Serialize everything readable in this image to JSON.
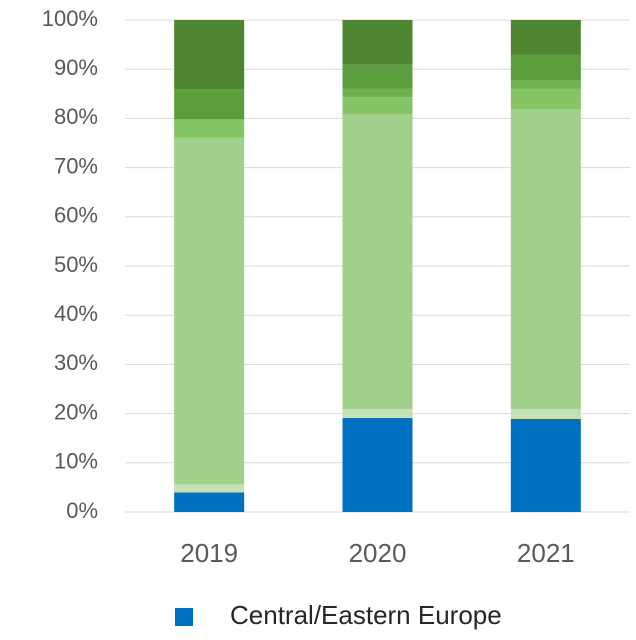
{
  "chart_data": {
    "type": "stacked_bar",
    "categories": [
      "2019",
      "2020",
      "2021"
    ],
    "series": [
      {
        "name": "Central/Eastern Europe",
        "color": "#0070c0",
        "values": [
          4,
          19.1,
          18.9
        ]
      },
      {
        "color": "#c5e0b4",
        "values": [
          1.6,
          1.8,
          2
        ]
      },
      {
        "color": "#a1cf8c",
        "values": [
          70.5,
          60,
          61
        ]
      },
      {
        "color": "#85c566",
        "values": [
          3.7,
          3.4,
          4.1
        ]
      },
      {
        "color": "#6db34f",
        "values": [
          0,
          1.7,
          1.8
        ]
      },
      {
        "color": "#5c9e3b",
        "values": [
          6.1,
          4.9,
          5.1
        ]
      },
      {
        "color": "#4e8530",
        "values": [
          14.1,
          9.1,
          7.1
        ]
      }
    ],
    "ylim": [
      0,
      100
    ],
    "yticks": [
      {
        "value": 0,
        "label": "0%"
      },
      {
        "value": 10,
        "label": "10%"
      },
      {
        "value": 20,
        "label": "20%"
      },
      {
        "value": 30,
        "label": "30%"
      },
      {
        "value": 40,
        "label": "40%"
      },
      {
        "value": 50,
        "label": "50%"
      },
      {
        "value": 60,
        "label": "60%"
      },
      {
        "value": 70,
        "label": "70%"
      },
      {
        "value": 80,
        "label": "80%"
      },
      {
        "value": 90,
        "label": "90%"
      },
      {
        "value": 100,
        "label": "100%"
      }
    ],
    "grid": true
  }
}
